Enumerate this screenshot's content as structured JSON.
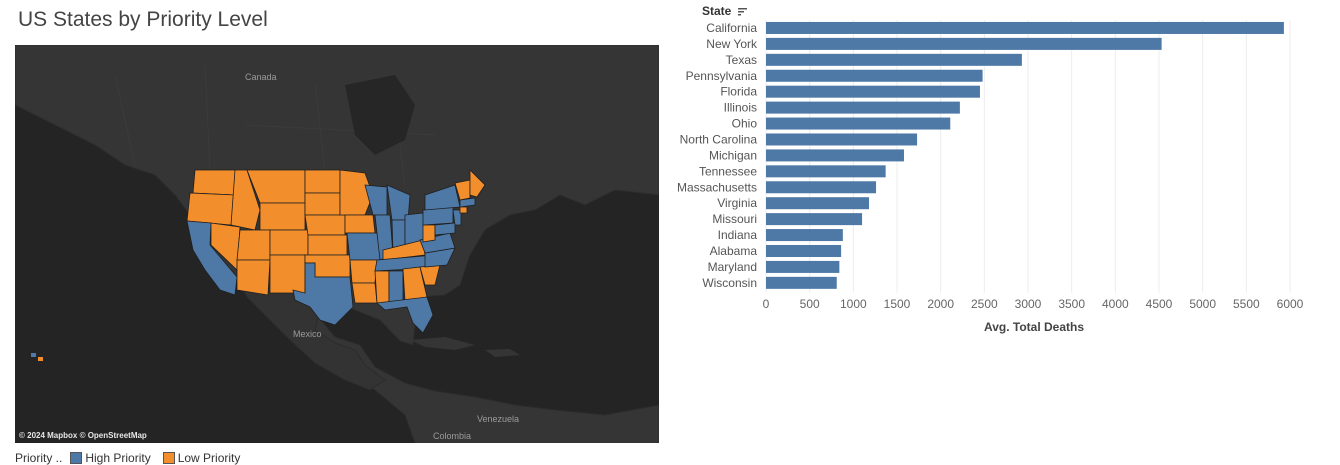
{
  "title": "US States by Priority Level",
  "map": {
    "labels": {
      "canada": "Canada",
      "mexico": "Mexico",
      "venezuela": "Venezuela",
      "colombia": "Colombia"
    },
    "attribution": "© 2024 Mapbox © OpenStreetMap",
    "colors": {
      "high": "#4e79a7",
      "low": "#f28e2b",
      "land": "#353535",
      "water": "#242424",
      "border": "#1f1f1f"
    }
  },
  "legend": {
    "title": "Priority ..",
    "items": [
      {
        "label": "High Priority",
        "color": "#4e79a7"
      },
      {
        "label": "Low Priority",
        "color": "#f28e2b"
      }
    ]
  },
  "chart_header": "State",
  "chart_data": {
    "type": "bar",
    "orientation": "horizontal",
    "categories": [
      "California",
      "New York",
      "Texas",
      "Pennsylvania",
      "Florida",
      "Illinois",
      "Ohio",
      "North Carolina",
      "Michigan",
      "Tennessee",
      "Massachusetts",
      "Virginia",
      "Missouri",
      "Indiana",
      "Alabama",
      "Maryland",
      "Wisconsin"
    ],
    "values": [
      5930,
      4530,
      2930,
      2480,
      2450,
      2220,
      2110,
      1730,
      1580,
      1370,
      1260,
      1180,
      1100,
      880,
      860,
      840,
      810
    ],
    "xlabel": "Avg. Total Deaths",
    "ylabel": "State",
    "xlim": [
      0,
      6000
    ],
    "ticks": [
      0,
      500,
      1000,
      1500,
      2000,
      2500,
      3000,
      3500,
      4000,
      4500,
      5000,
      5500,
      6000
    ],
    "bar_color": "#4e79a7",
    "grid": true
  }
}
